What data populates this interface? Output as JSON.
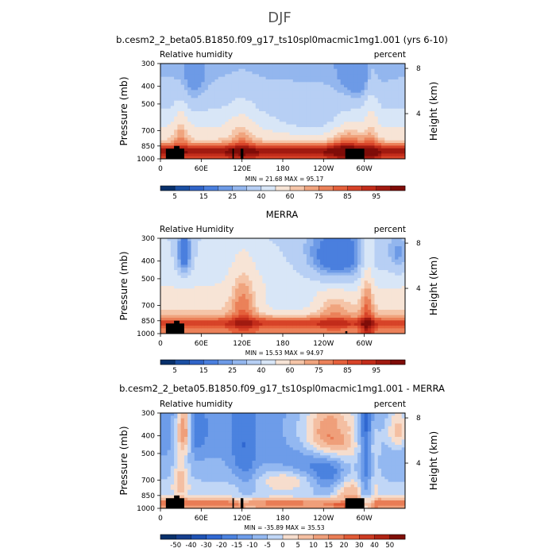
{
  "figure_title": "DJF",
  "x_ticks": [
    "0",
    "60E",
    "120E",
    "180",
    "120W",
    "60W"
  ],
  "x_tick_lon": [
    0,
    60,
    120,
    180,
    240,
    300
  ],
  "y_ticks_left": [
    "300",
    "400",
    "500",
    "700",
    "850",
    "1000"
  ],
  "y_ticks_left_values": [
    300,
    400,
    500,
    700,
    850,
    1000
  ],
  "y_ticks_right": [
    "8",
    "4"
  ],
  "y_ticks_right_values": [
    8,
    4
  ],
  "y_axis_left_label": "Pressure (mb)",
  "y_axis_right_label": "Height (km)",
  "chart_data": [
    {
      "type": "heatmap",
      "title": "b.cesm2_2_beta05.B1850.f09_g17_ts10spl0macmic1mg1.001 (yrs 6-10)",
      "left_label": "Relative humidity",
      "right_label": "percent",
      "stats": "MIN =   21.68   MAX =   95.17",
      "min": 21.68,
      "max": 95.17,
      "colorbar_labels": [
        "5",
        "15",
        "25",
        "40",
        "60",
        "75",
        "85",
        "95"
      ],
      "colors": [
        "#08306b",
        "#1b4fa3",
        "#3064c8",
        "#4a7fde",
        "#6d9ae6",
        "#93b6ee",
        "#b7cff4",
        "#d8e6f7",
        "#f7e4d6",
        "#f5c5a8",
        "#f0a47e",
        "#eb8159",
        "#e5603b",
        "#d74328",
        "#c22c1a",
        "#a11a10",
        "#7f0c08"
      ],
      "xlim": [
        0,
        360
      ],
      "ylim": [
        1000,
        300
      ]
    },
    {
      "type": "heatmap",
      "title": "MERRA",
      "left_label": "Relative Humidity",
      "right_label": "percent",
      "stats": "MIN =   15.53   MAX =   94.97",
      "min": 15.53,
      "max": 94.97,
      "colorbar_labels": [
        "5",
        "15",
        "25",
        "40",
        "60",
        "75",
        "85",
        "95"
      ],
      "colors": [
        "#08306b",
        "#1b4fa3",
        "#3064c8",
        "#4a7fde",
        "#6d9ae6",
        "#93b6ee",
        "#b7cff4",
        "#d8e6f7",
        "#f7e4d6",
        "#f5c5a8",
        "#f0a47e",
        "#eb8159",
        "#e5603b",
        "#d74328",
        "#c22c1a",
        "#a11a10",
        "#7f0c08"
      ],
      "xlim": [
        0,
        360
      ],
      "ylim": [
        1000,
        300
      ]
    },
    {
      "type": "heatmap",
      "title": "b.cesm2_2_beta05.B1850.f09_g17_ts10spl0macmic1mg1.001 - MERRA",
      "left_label": "Relative humidity",
      "right_label": "percent",
      "stats": "MIN =  -35.89   MAX =   35.53",
      "min": -35.89,
      "max": 35.53,
      "colorbar_labels": [
        "-50",
        "-40",
        "-30",
        "-20",
        "-15",
        "-10",
        "-5",
        "0",
        "5",
        "10",
        "15",
        "20",
        "30",
        "40",
        "50"
      ],
      "colors": [
        "#08306b",
        "#163f8e",
        "#1f53b4",
        "#3068d1",
        "#4b82df",
        "#6d9ce9",
        "#93b8f1",
        "#c0d6f6",
        "#f6ddcd",
        "#f4bfa2",
        "#ef9f7a",
        "#e97d56",
        "#e05a36",
        "#cc3b22",
        "#b02414",
        "#800f07"
      ],
      "xlim": [
        0,
        360
      ],
      "ylim": [
        1000,
        300
      ]
    }
  ]
}
